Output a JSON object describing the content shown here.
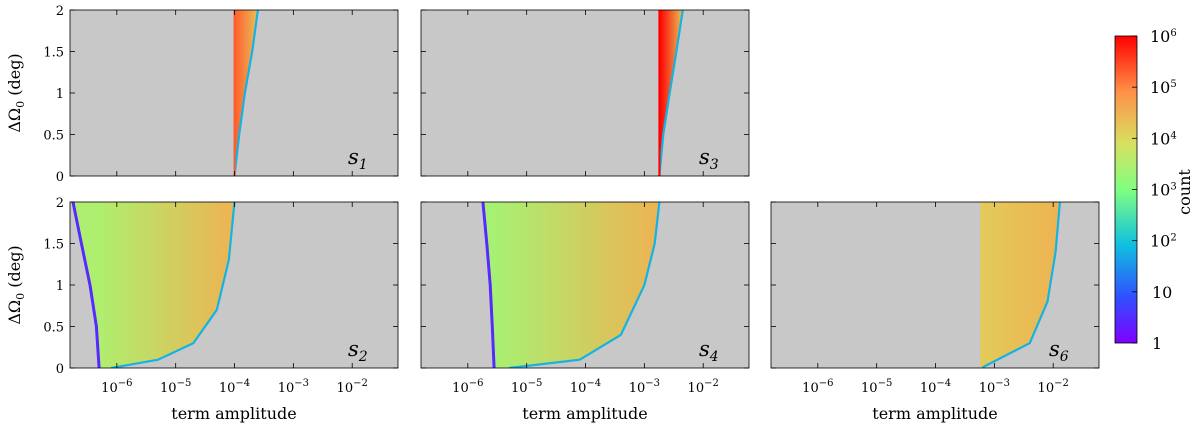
{
  "colors": {
    "panel_background": "#c8c8c8",
    "colormap": "rainbow"
  },
  "colorbar": {
    "label": "count",
    "scale": "log",
    "range": [
      1,
      1000000
    ],
    "ticks": [
      {
        "value": 1,
        "text": "1"
      },
      {
        "value": 10,
        "text": "10"
      },
      {
        "value": 100,
        "base": "10",
        "exp": "2"
      },
      {
        "value": 1000,
        "base": "10",
        "exp": "3"
      },
      {
        "value": 10000,
        "base": "10",
        "exp": "4"
      },
      {
        "value": 100000,
        "base": "10",
        "exp": "5"
      },
      {
        "value": 1000000,
        "base": "10",
        "exp": "6"
      }
    ]
  },
  "axes_text": {
    "xlabel": "term amplitude",
    "ylabel_prefix": "ΔΩ",
    "ylabel_sub": "0",
    "ylabel_unit": " (deg)"
  },
  "chart_data": {
    "type": "heatmap",
    "xscale": "log",
    "xlim": [
      1.6e-07,
      0.06
    ],
    "ylim": [
      0,
      2
    ],
    "x_ticks": [
      {
        "value": 1e-06,
        "base": "10",
        "exp": "−6"
      },
      {
        "value": 1e-05,
        "base": "10",
        "exp": "−5"
      },
      {
        "value": 0.0001,
        "base": "10",
        "exp": "−4"
      },
      {
        "value": 0.001,
        "base": "10",
        "exp": "−3"
      },
      {
        "value": 0.01,
        "base": "10",
        "exp": "−2"
      }
    ],
    "y_ticks": [
      {
        "value": 0,
        "text": "0"
      },
      {
        "value": 0.5,
        "text": "0.5"
      },
      {
        "value": 1,
        "text": "1"
      },
      {
        "value": 1.5,
        "text": "1.5"
      },
      {
        "value": 2,
        "text": "2"
      }
    ],
    "panels": [
      {
        "id": "s1",
        "label": "s",
        "sub": "1",
        "row": 0,
        "col": 0,
        "x_left": 0.0001,
        "left_count": 200000,
        "right_count": 20000,
        "boundary": [
          [
            0.0001,
            0
          ],
          [
            0.00012,
            0.5
          ],
          [
            0.00015,
            1.0
          ],
          [
            0.0002,
            1.5
          ],
          [
            0.00025,
            2.0
          ]
        ]
      },
      {
        "id": "s3",
        "label": "s",
        "sub": "3",
        "row": 0,
        "col": 1,
        "x_left": 0.0018,
        "left_count": 1000000,
        "right_count": 20000,
        "boundary": [
          [
            0.0018,
            0
          ],
          [
            0.0021,
            0.5
          ],
          [
            0.0027,
            1.0
          ],
          [
            0.0035,
            1.5
          ],
          [
            0.0045,
            2.0
          ]
        ]
      },
      {
        "id": "s2",
        "label": "s",
        "sub": "2",
        "row": 1,
        "col": 0,
        "x_left": 5e-07,
        "left_count": 3000,
        "right_count": 30000,
        "boundary": [
          [
            8e-07,
            0
          ],
          [
            5e-06,
            0.1
          ],
          [
            2e-05,
            0.3
          ],
          [
            5e-05,
            0.7
          ],
          [
            8e-05,
            1.3
          ],
          [
            0.0001,
            2.0
          ]
        ],
        "left_edge": [
          [
            5e-07,
            0
          ],
          [
            4.5e-07,
            0.5
          ],
          [
            3.5e-07,
            1.0
          ],
          [
            2.5e-07,
            1.5
          ],
          [
            1.8e-07,
            2.0
          ]
        ]
      },
      {
        "id": "s4",
        "label": "s",
        "sub": "4",
        "row": 1,
        "col": 1,
        "x_left": 2.8e-06,
        "left_count": 2500,
        "right_count": 30000,
        "boundary": [
          [
            5e-06,
            0
          ],
          [
            8e-05,
            0.1
          ],
          [
            0.0004,
            0.4
          ],
          [
            0.001,
            1.0
          ],
          [
            0.0015,
            1.5
          ],
          [
            0.0018,
            2.0
          ]
        ],
        "left_edge": [
          [
            2.8e-06,
            0
          ],
          [
            2.6e-06,
            0.5
          ],
          [
            2.4e-06,
            1.0
          ],
          [
            2.1e-06,
            1.5
          ],
          [
            1.8e-06,
            2.0
          ]
        ]
      },
      {
        "id": "s6",
        "label": "s",
        "sub": "6",
        "row": 1,
        "col": 2,
        "x_left": 0.0006,
        "left_count": 15000,
        "right_count": 30000,
        "boundary": [
          [
            0.0006,
            0
          ],
          [
            0.004,
            0.3
          ],
          [
            0.008,
            0.8
          ],
          [
            0.011,
            1.4
          ],
          [
            0.013,
            2.0
          ]
        ]
      }
    ]
  }
}
